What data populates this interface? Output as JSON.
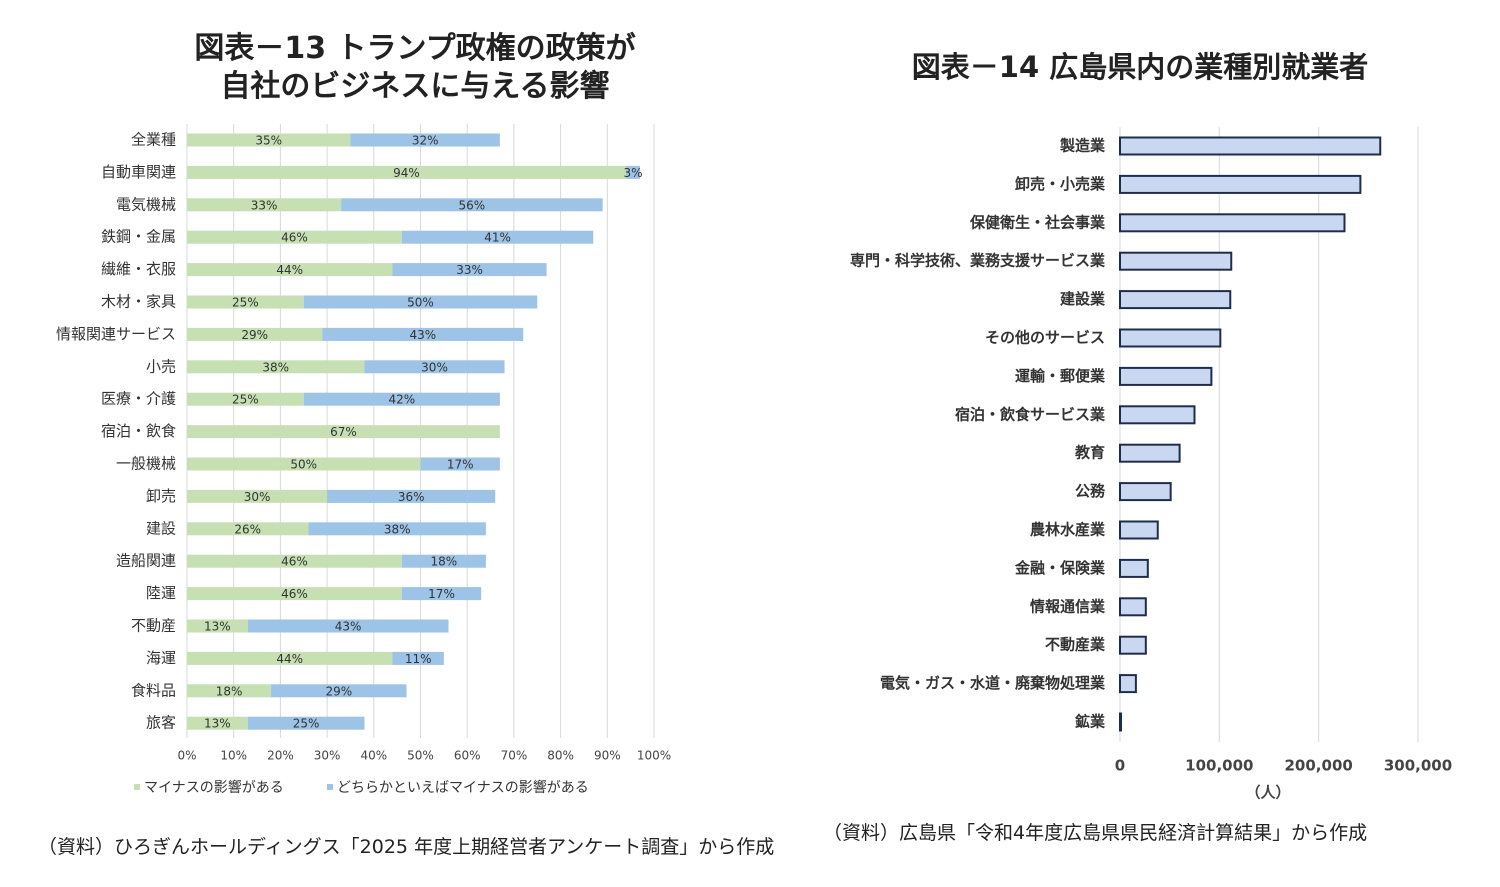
{
  "titles": {
    "left_line1": "図表－13 トランプ政権の政策が",
    "left_line2": "自社のビジネスに与える影響",
    "right": "図表－14 広島県内の業種別就業者"
  },
  "sources": {
    "left": "（資料）ひろぎんホールディングス「2025 年度上期経営者アンケート調査」から作成",
    "right": "（資料）広島県「令和4年度広島県県民経済計算結果」から作成"
  },
  "colors": {
    "green": "#c6e0b4",
    "blue": "#9dc3e6",
    "bar2": "#c9d7f0",
    "bar2_border": "#1f2d4d",
    "grid": "#d9d9d9"
  },
  "chart_data": [
    {
      "type": "bar",
      "orientation": "horizontal",
      "stacked": true,
      "categories": [
        "全業種",
        "自動車関連",
        "電気機械",
        "鉄鋼・金属",
        "繊維・衣服",
        "木材・家具",
        "情報関連サービス",
        "小売",
        "医療・介護",
        "宿泊・飲食",
        "一般機械",
        "卸売",
        "建設",
        "造船関連",
        "陸運",
        "不動産",
        "海運",
        "食料品",
        "旅客"
      ],
      "series": [
        {
          "name": "マイナスの影響がある",
          "values": [
            35,
            94,
            33,
            46,
            44,
            25,
            29,
            38,
            25,
            67,
            50,
            30,
            26,
            46,
            46,
            13,
            44,
            18,
            13
          ]
        },
        {
          "name": "どちらかといえばマイナスの影響がある",
          "values": [
            32,
            3,
            56,
            41,
            33,
            50,
            43,
            30,
            42,
            0,
            17,
            36,
            38,
            18,
            17,
            43,
            11,
            29,
            25
          ]
        }
      ],
      "xlim": [
        0,
        100
      ],
      "xticks": [
        "0%",
        "10%",
        "20%",
        "30%",
        "40%",
        "50%",
        "60%",
        "70%",
        "80%",
        "90%",
        "100%"
      ],
      "legend_position": "bottom"
    },
    {
      "type": "bar",
      "orientation": "horizontal",
      "categories": [
        "製造業",
        "卸売・小売業",
        "保健衛生・社会事業",
        "専門・科学技術、業務支援サービス業",
        "建設業",
        "その他のサービス",
        "運輸・郵便業",
        "宿泊・飲食サービス業",
        "教育",
        "公務",
        "農林水産業",
        "金融・保険業",
        "情報通信業",
        "不動産業",
        "電気・ガス・水道・廃棄物処理業",
        "鉱業"
      ],
      "values": [
        262000,
        242000,
        226000,
        112000,
        111000,
        101000,
        92000,
        75000,
        60000,
        51000,
        38000,
        28000,
        26000,
        26000,
        16000,
        1000
      ],
      "xlim": [
        0,
        300000
      ],
      "xticks": [
        "0",
        "100,000",
        "200,000",
        "300,000"
      ],
      "xlabel": "（人）"
    }
  ]
}
